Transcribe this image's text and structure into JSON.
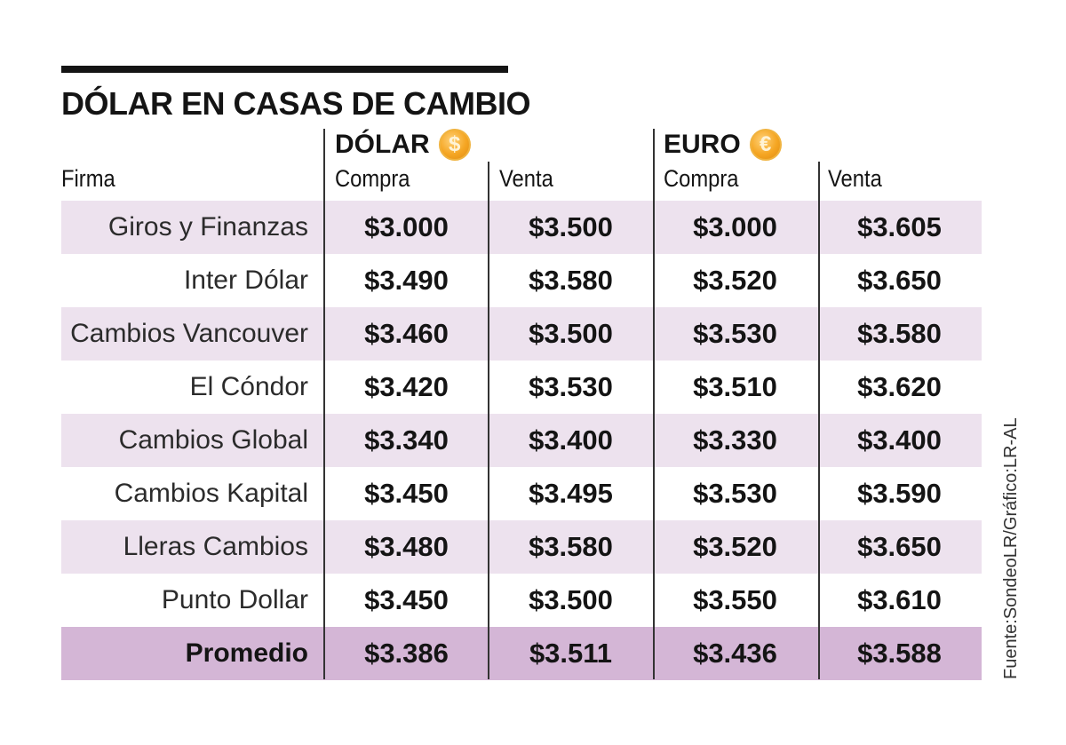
{
  "title": "DÓLAR EN CASAS DE CAMBIO",
  "headers": {
    "firma": "Firma",
    "dolar": "DÓLAR",
    "euro": "EURO",
    "compra": "Compra",
    "venta": "Venta"
  },
  "icons": {
    "dolar_coin": "$",
    "euro_coin": "€"
  },
  "colors": {
    "row_alt": "#ede2ee",
    "row_avg": "#d4b6d6",
    "coin": "#f5a623"
  },
  "source": "Fuente:SondeoLR/Gráfico:LR-AL",
  "chart_data": {
    "type": "table",
    "title": "DÓLAR EN CASAS DE CAMBIO",
    "columns": [
      "Firma",
      "Dólar Compra",
      "Dólar Venta",
      "Euro Compra",
      "Euro Venta"
    ],
    "rows": [
      {
        "firma": "Giros y Finanzas",
        "values": [
          "$3.000",
          "$3.500",
          "$3.000",
          "$3.605"
        ]
      },
      {
        "firma": "Inter Dólar",
        "values": [
          "$3.490",
          "$3.580",
          "$3.520",
          "$3.650"
        ]
      },
      {
        "firma": "Cambios Vancouver",
        "values": [
          "$3.460",
          "$3.500",
          "$3.530",
          "$3.580"
        ]
      },
      {
        "firma": "El Cóndor",
        "values": [
          "$3.420",
          "$3.530",
          "$3.510",
          "$3.620"
        ]
      },
      {
        "firma": "Cambios Global",
        "values": [
          "$3.340",
          "$3.400",
          "$3.330",
          "$3.400"
        ]
      },
      {
        "firma": "Cambios Kapital",
        "values": [
          "$3.450",
          "$3.495",
          "$3.530",
          "$3.590"
        ]
      },
      {
        "firma": "Lleras Cambios",
        "values": [
          "$3.480",
          "$3.580",
          "$3.520",
          "$3.650"
        ]
      },
      {
        "firma": "Punto Dollar",
        "values": [
          "$3.450",
          "$3.500",
          "$3.550",
          "$3.610"
        ]
      },
      {
        "firma": "Promedio",
        "values": [
          "$3.386",
          "$3.511",
          "$3.436",
          "$3.588"
        ]
      }
    ]
  }
}
